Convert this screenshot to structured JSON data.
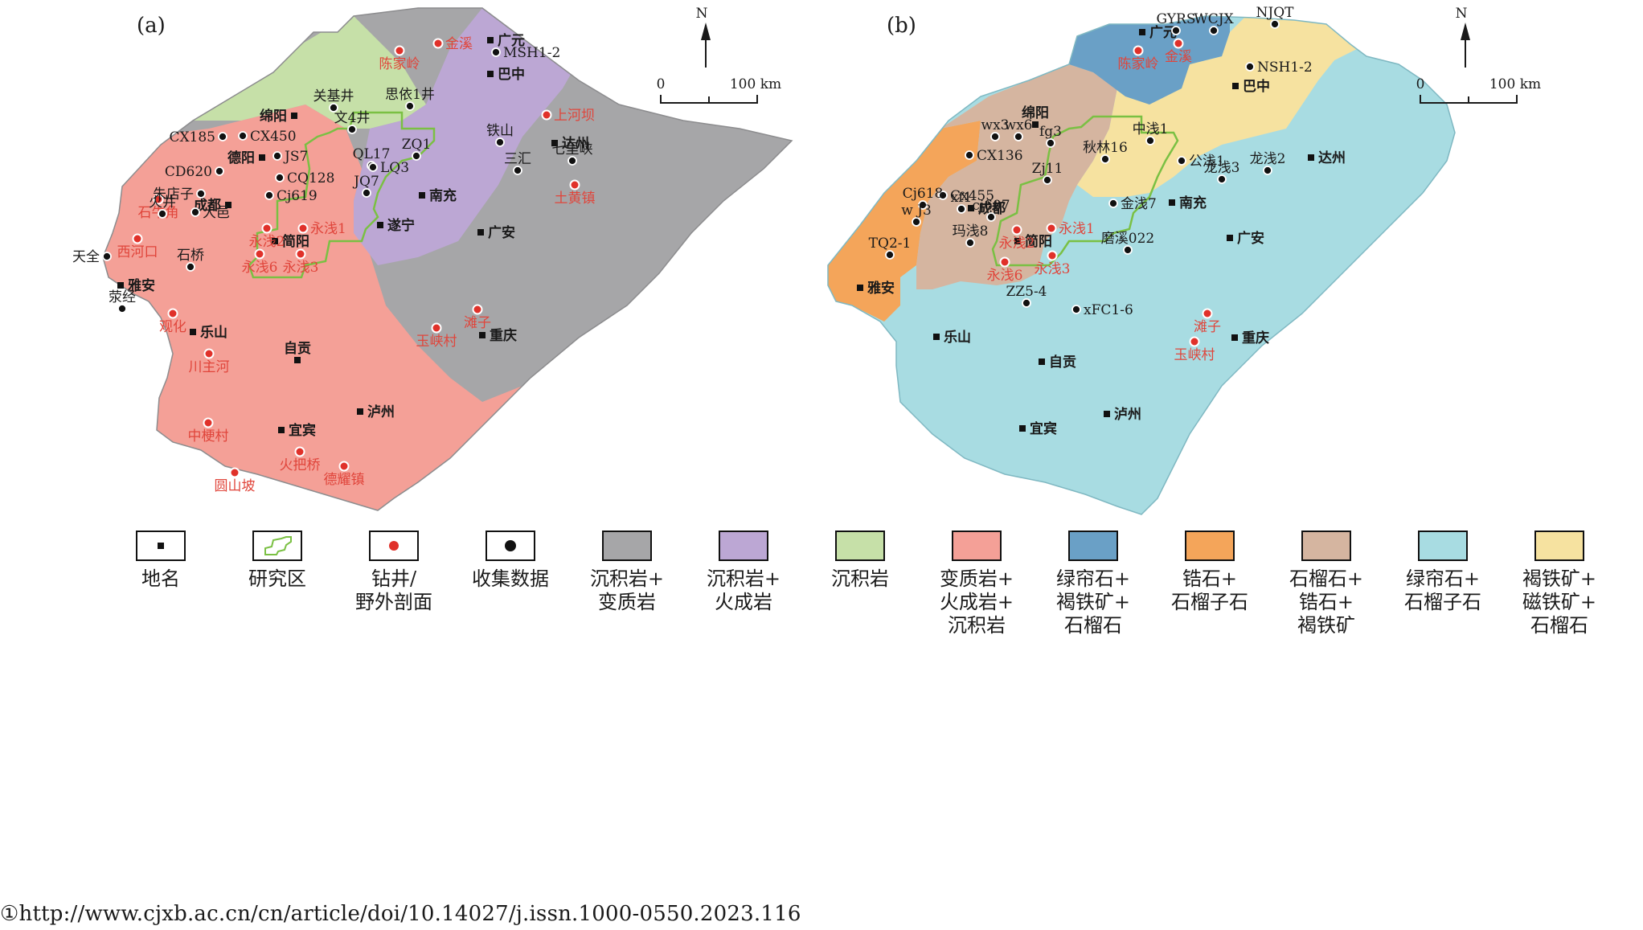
{
  "panels": {
    "a": {
      "tag": "(a)"
    },
    "b": {
      "tag": "(b)"
    }
  },
  "north": {
    "label": "N"
  },
  "scale": {
    "zero": "0",
    "max": "100 km"
  },
  "colors": {
    "sed_meta": "#a6a6a8",
    "sed_ign": "#bca7d4",
    "sed": "#c6e0a8",
    "meta_ign_sed": "#f4a097",
    "epi_lim_gar": "#6aa0c6",
    "zir_gar": "#f4a55a",
    "gar_zir_lim": "#d5b5a0",
    "epi_gar": "#a8dce2",
    "lim_mag_gar": "#f6e2a0",
    "study_area": "#7ac043",
    "drill": "#e0312a",
    "label_red": "#e0453b"
  },
  "map_a": {
    "places": [
      {
        "name": "广元"
      },
      {
        "name": "巴中"
      },
      {
        "name": "绵阳"
      },
      {
        "name": "德阳"
      },
      {
        "name": "成都"
      },
      {
        "name": "南充"
      },
      {
        "name": "达州"
      },
      {
        "name": "遂宁"
      },
      {
        "name": "广安"
      },
      {
        "name": "简阳"
      },
      {
        "name": "雅安"
      },
      {
        "name": "乐山"
      },
      {
        "name": "自贡"
      },
      {
        "name": "重庆"
      },
      {
        "name": "泸州"
      },
      {
        "name": "宜宾"
      }
    ],
    "drills": [
      {
        "name": "陈家岭"
      },
      {
        "name": "金溪"
      },
      {
        "name": "上河坝"
      },
      {
        "name": "土黄镇"
      },
      {
        "name": "石牛角"
      },
      {
        "name": "西河口"
      },
      {
        "name": "永浅2"
      },
      {
        "name": "永浅1"
      },
      {
        "name": "永浅6"
      },
      {
        "name": "永浅3"
      },
      {
        "name": "滩子"
      },
      {
        "name": "玉峡村"
      },
      {
        "name": "观化"
      },
      {
        "name": "川主河"
      },
      {
        "name": "中梗村"
      },
      {
        "name": "火把桥"
      },
      {
        "name": "德耀镇"
      },
      {
        "name": "圆山坡"
      }
    ],
    "collected": [
      {
        "name": "MSH1-2"
      },
      {
        "name": "思依1井"
      },
      {
        "name": "关基井"
      },
      {
        "name": "文4井"
      },
      {
        "name": "CX450"
      },
      {
        "name": "CX185"
      },
      {
        "name": "JS7"
      },
      {
        "name": "CD620"
      },
      {
        "name": "CQ128"
      },
      {
        "name": "朱店子"
      },
      {
        "name": "Cj619"
      },
      {
        "name": "ZQ1"
      },
      {
        "name": "QL17"
      },
      {
        "name": "JQ7"
      },
      {
        "name": "LQ3"
      },
      {
        "name": "铁山"
      },
      {
        "name": "三汇"
      },
      {
        "name": "七里峡"
      },
      {
        "name": "火井"
      },
      {
        "name": "大邑"
      },
      {
        "name": "天全"
      },
      {
        "name": "石桥"
      },
      {
        "name": "荥经"
      }
    ]
  },
  "map_b": {
    "places": [
      {
        "name": "广元"
      },
      {
        "name": "巴中"
      },
      {
        "name": "绵阳"
      },
      {
        "name": "成都"
      },
      {
        "name": "南充"
      },
      {
        "name": "达州"
      },
      {
        "name": "广安"
      },
      {
        "name": "简阳"
      },
      {
        "name": "雅安"
      },
      {
        "name": "乐山"
      },
      {
        "name": "自贡"
      },
      {
        "name": "重庆"
      },
      {
        "name": "泸州"
      },
      {
        "name": "宜宾"
      }
    ],
    "drills": [
      {
        "name": "陈家岭"
      },
      {
        "name": "金溪"
      },
      {
        "name": "永浅2"
      },
      {
        "name": "永浅1"
      },
      {
        "name": "永浅6"
      },
      {
        "name": "永浅3"
      },
      {
        "name": "滩子"
      },
      {
        "name": "玉峡村"
      }
    ],
    "collected": [
      {
        "name": "GYRS"
      },
      {
        "name": "WCJX"
      },
      {
        "name": "NJQT"
      },
      {
        "name": "NSH1-2"
      },
      {
        "name": "wx3"
      },
      {
        "name": "wx6"
      },
      {
        "name": "fg3"
      },
      {
        "name": "中浅1"
      },
      {
        "name": "公浅1"
      },
      {
        "name": "秋林16"
      },
      {
        "name": "CX136"
      },
      {
        "name": "Cx455"
      },
      {
        "name": "Cj618"
      },
      {
        "name": "xf1"
      },
      {
        "name": "w J3"
      },
      {
        "name": "cj607"
      },
      {
        "name": "Zj11"
      },
      {
        "name": "金浅7"
      },
      {
        "name": "龙浅3"
      },
      {
        "name": "龙浅2"
      },
      {
        "name": "玛浅8"
      },
      {
        "name": "TQ2-1"
      },
      {
        "name": "磨溪022"
      },
      {
        "name": "ZZ5-4"
      },
      {
        "name": "xFC1-6"
      }
    ]
  },
  "legend": [
    {
      "text": "地名",
      "icon": "square-marker-icon"
    },
    {
      "text": "研究区",
      "icon": "study-area-outline-icon"
    },
    {
      "text": "钻井/\n野外剖面",
      "icon": "red-dot-icon"
    },
    {
      "text": "收集数据",
      "icon": "black-dot-icon"
    },
    {
      "text": "沉积岩+\n变质岩",
      "swatch": "sed_meta"
    },
    {
      "text": "沉积岩+\n火成岩",
      "swatch": "sed_ign"
    },
    {
      "text": "沉积岩",
      "swatch": "sed"
    },
    {
      "text": "变质岩+\n火成岩+\n沉积岩",
      "swatch": "meta_ign_sed"
    },
    {
      "text": "绿帘石+\n褐铁矿+\n石榴石",
      "swatch": "epi_lim_gar"
    },
    {
      "text": "锆石+\n石榴子石",
      "swatch": "zir_gar"
    },
    {
      "text": "石榴石+\n锆石+\n褐铁矿",
      "swatch": "gar_zir_lim"
    },
    {
      "text": "绿帘石+\n石榴子石",
      "swatch": "epi_gar"
    },
    {
      "text": "褐铁矿+\n磁铁矿+\n石榴石",
      "swatch": "lim_mag_gar"
    }
  ],
  "footnote": "①http://www.cjxb.ac.cn/cn/article/doi/10.14027/j.issn.1000-0550.2023.116"
}
